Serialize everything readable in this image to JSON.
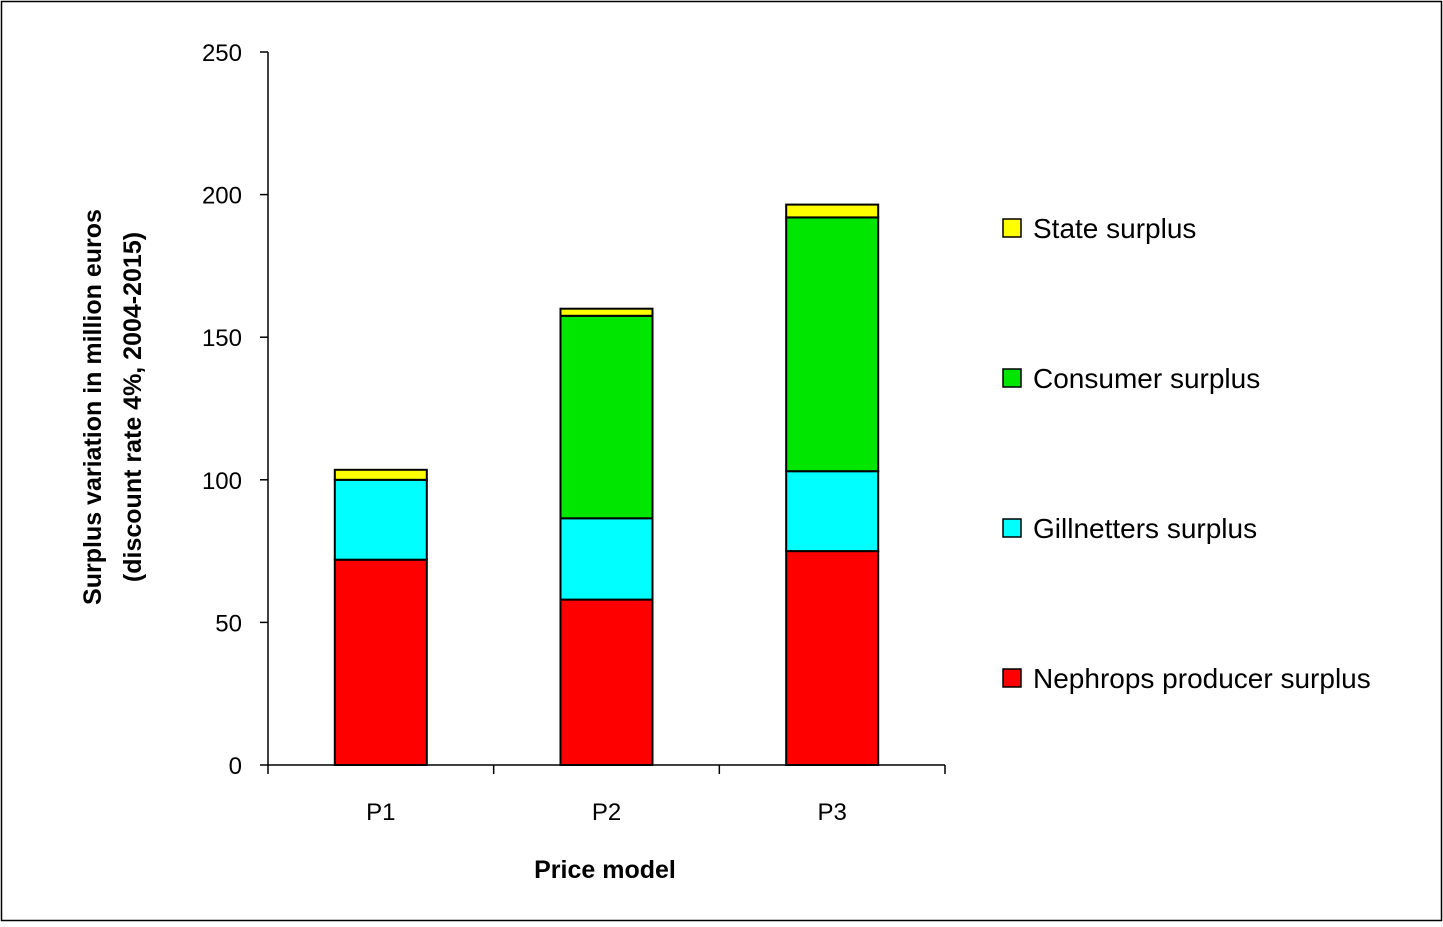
{
  "chart_data": {
    "type": "bar",
    "stacked": true,
    "categories": [
      "P1",
      "P2",
      "P3"
    ],
    "series": [
      {
        "name": "Nephrops producer surplus",
        "color": "#ff0000",
        "values": [
          72,
          58,
          75
        ]
      },
      {
        "name": "Gillnetters surplus",
        "color": "#00ffff",
        "values": [
          28,
          28.5,
          28
        ]
      },
      {
        "name": "Consumer surplus",
        "color": "#00e600",
        "values": [
          0,
          71,
          89
        ]
      },
      {
        "name": "State surplus",
        "color": "#ffff00",
        "values": [
          3.5,
          2.5,
          4.5
        ]
      }
    ],
    "xlabel": "Price model",
    "ylabel_line1": "Surplus variation in million euros",
    "ylabel_line2": "(discount rate 4%, 2004-2015)",
    "ylim": [
      0,
      250
    ],
    "yticks": [
      "0",
      "50",
      "100",
      "150",
      "200",
      "250"
    ],
    "grid": false,
    "legend_position": "right",
    "legend_order": [
      "State surplus",
      "Consumer surplus",
      "Gillnetters surplus",
      "Nephrops producer surplus"
    ]
  }
}
